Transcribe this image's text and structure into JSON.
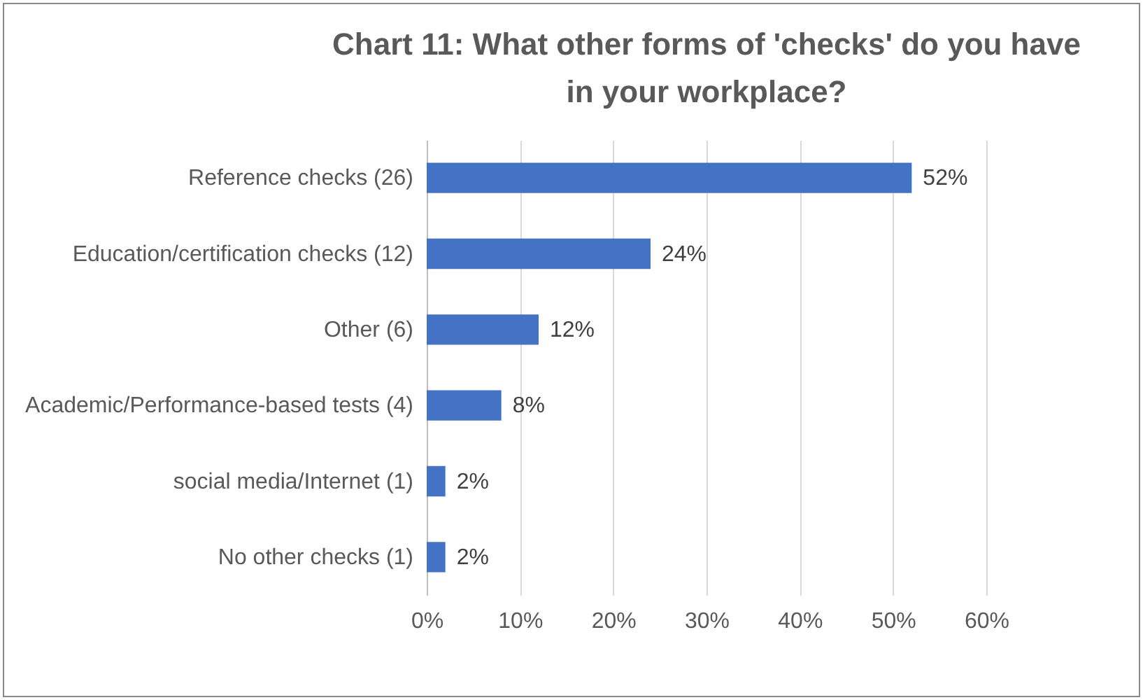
{
  "chart_data": {
    "type": "bar",
    "orientation": "horizontal",
    "title": "Chart 11: What other forms of 'checks' do you have in your workplace?",
    "categories": [
      "Reference checks (26)",
      "Education/certification checks (12)",
      "Other (6)",
      "Academic/Performance-based tests (4)",
      "social media/Internet (1)",
      "No other checks (1)"
    ],
    "values": [
      52,
      24,
      12,
      8,
      2,
      2
    ],
    "value_labels": [
      "52%",
      "24%",
      "12%",
      "8%",
      "2%",
      "2%"
    ],
    "color": "#4472c4",
    "xlim": [
      0,
      60
    ],
    "xticks": [
      {
        "value": 0,
        "label": "0%"
      },
      {
        "value": 10,
        "label": "10%"
      },
      {
        "value": 20,
        "label": "20%"
      },
      {
        "value": 30,
        "label": "30%"
      },
      {
        "value": 40,
        "label": "40%"
      },
      {
        "value": 50,
        "label": "50%"
      },
      {
        "value": 60,
        "label": "60%"
      }
    ],
    "grid": "x"
  }
}
